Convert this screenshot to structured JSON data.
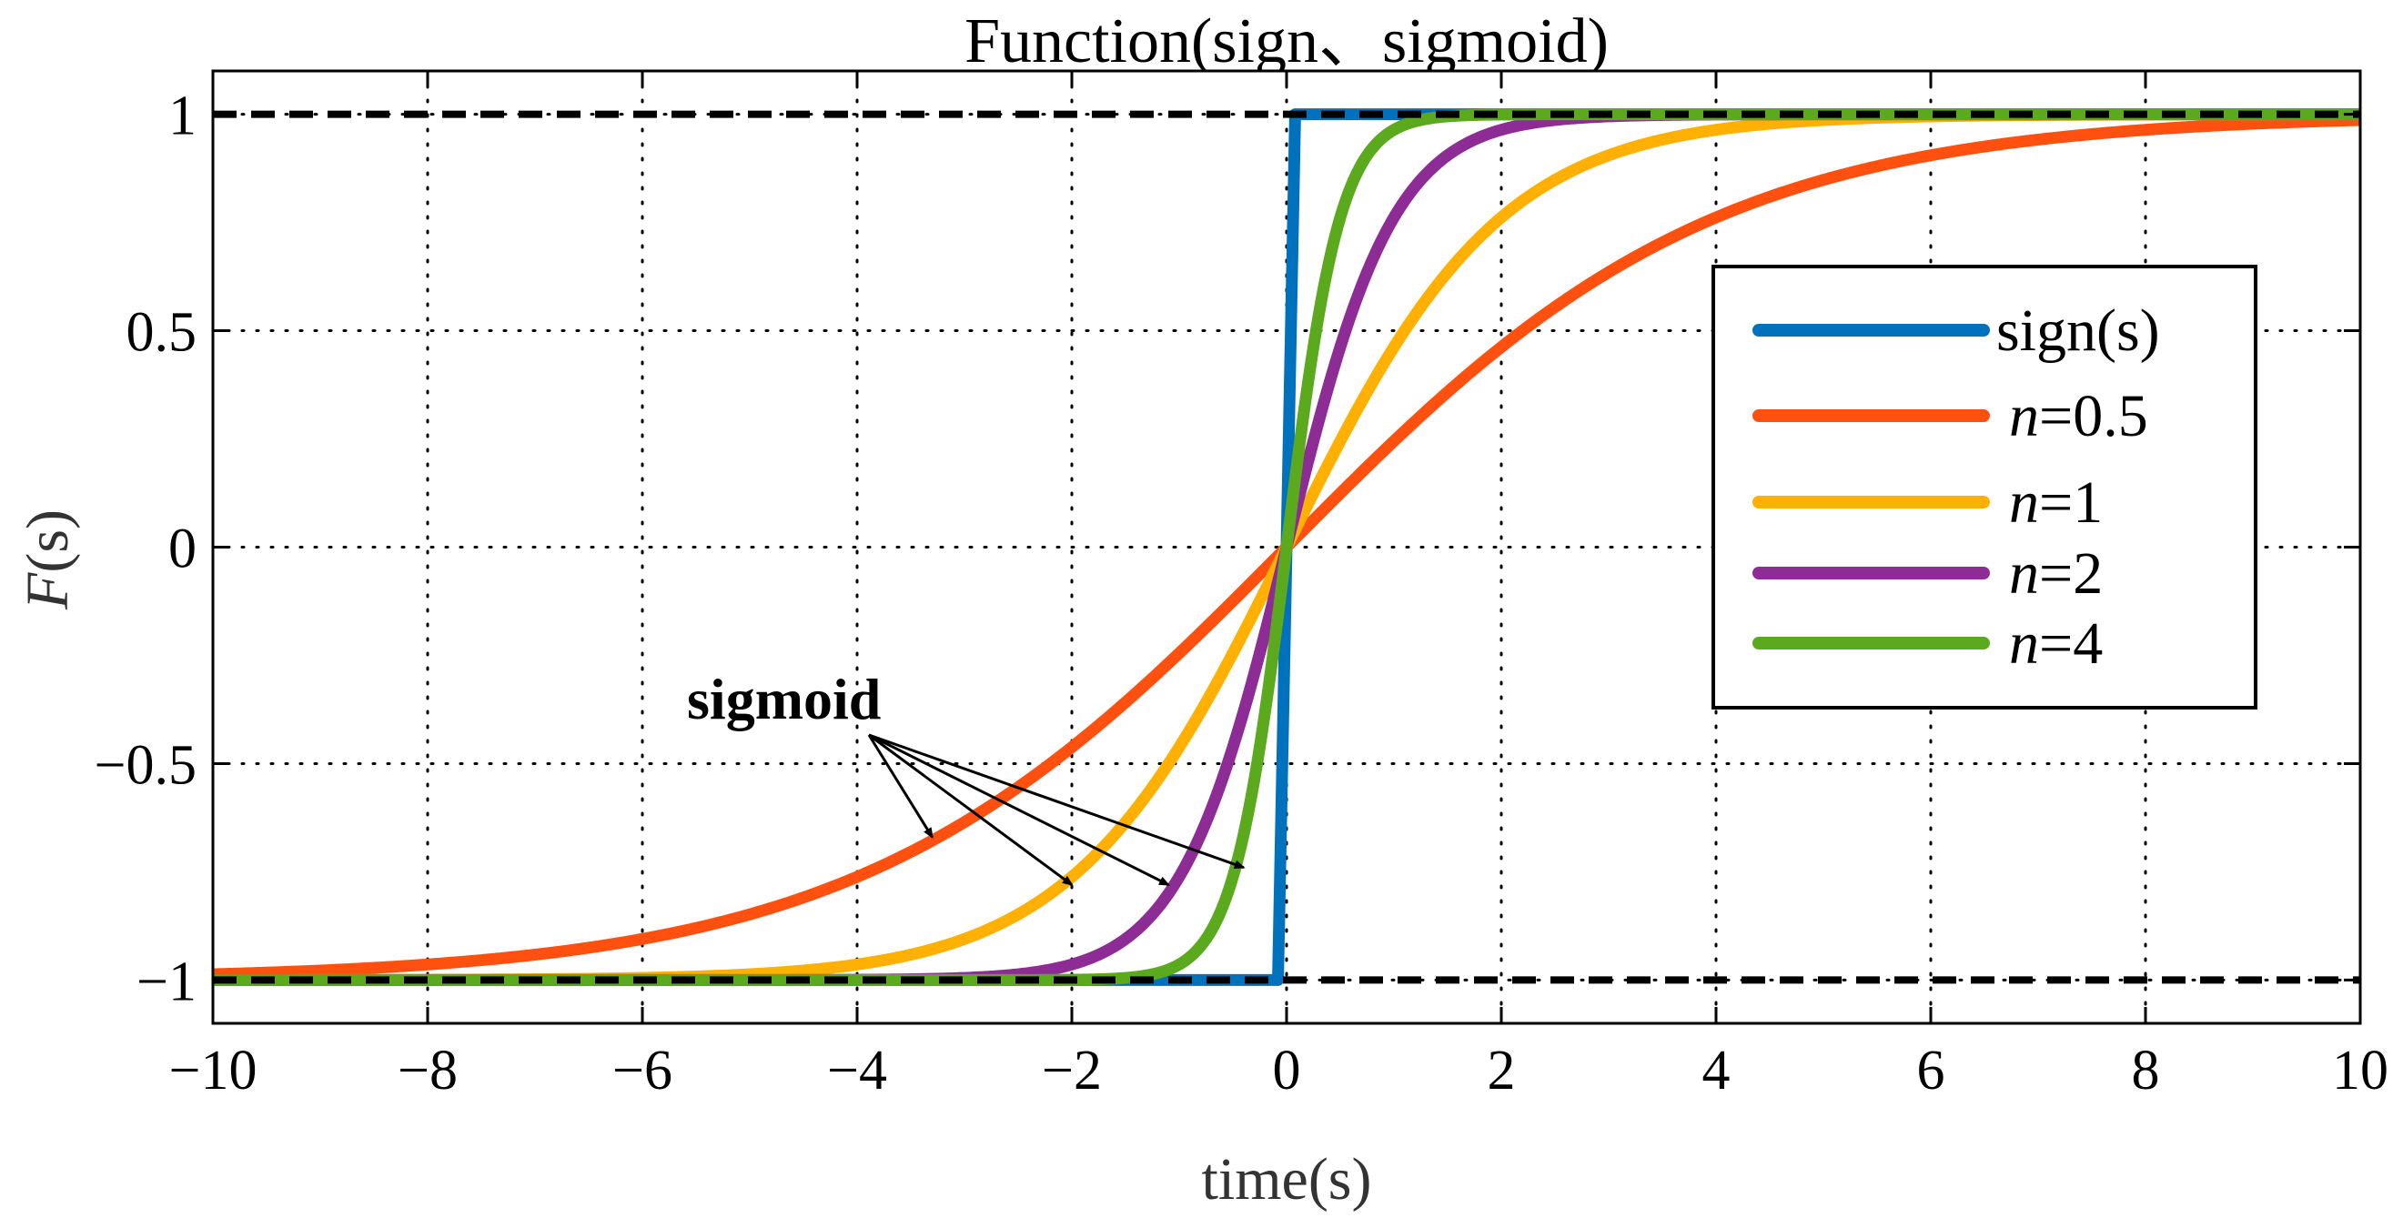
{
  "chart_data": {
    "type": "line",
    "title": "Function(sign、sigmoid)",
    "xlabel": "time(s)",
    "ylabel": "F(s)",
    "ylabel_italic_part": "F",
    "ylabel_rest": "(s)",
    "xlim": [
      -10,
      10
    ],
    "ylim": [
      -1.1,
      1.1
    ],
    "xticks": [
      -10,
      -8,
      -6,
      -4,
      -2,
      0,
      2,
      4,
      6,
      8,
      10
    ],
    "xtick_labels": [
      "−10",
      "−8",
      "−6",
      "−4",
      "−2",
      "0",
      "2",
      "4",
      "6",
      "8",
      "10"
    ],
    "yticks": [
      -1,
      -0.5,
      0,
      0.5,
      1
    ],
    "ytick_labels": [
      "−1",
      "−0.5",
      "0",
      "0.5",
      "1"
    ],
    "grid": true,
    "reference_lines": [
      {
        "y": 1,
        "style": "dashed",
        "color": "#000000"
      },
      {
        "y": -1,
        "style": "dashed",
        "color": "#000000"
      }
    ],
    "series": [
      {
        "name": "sign(s)",
        "kind": "sign",
        "color": "#0072BD",
        "label_italic": "",
        "label_rest": "sign(s)"
      },
      {
        "name": "n=0.5",
        "kind": "sigmoid",
        "n": 0.5,
        "color": "#FF5010",
        "label_italic": "n",
        "label_rest": "=0.5"
      },
      {
        "name": "n=1",
        "kind": "sigmoid",
        "n": 1,
        "color": "#FFB000",
        "label_italic": "n",
        "label_rest": "=1"
      },
      {
        "name": "n=2",
        "kind": "sigmoid",
        "n": 2,
        "color": "#8E2C96",
        "label_italic": "n",
        "label_rest": "=2"
      },
      {
        "name": "n=4",
        "kind": "sigmoid",
        "n": 4,
        "color": "#5BAA1E",
        "label_italic": "n",
        "label_rest": "=4"
      }
    ],
    "legend_position": "right",
    "annotation": {
      "text": "sigmoid",
      "anchor": {
        "x": -3.9,
        "y": -0.42
      },
      "arrow_targets": [
        {
          "x": -3.3,
          "y": -0.67
        },
        {
          "x": -2.0,
          "y": -0.78
        },
        {
          "x": -1.1,
          "y": -0.78
        },
        {
          "x": -0.4,
          "y": -0.74
        }
      ]
    }
  }
}
